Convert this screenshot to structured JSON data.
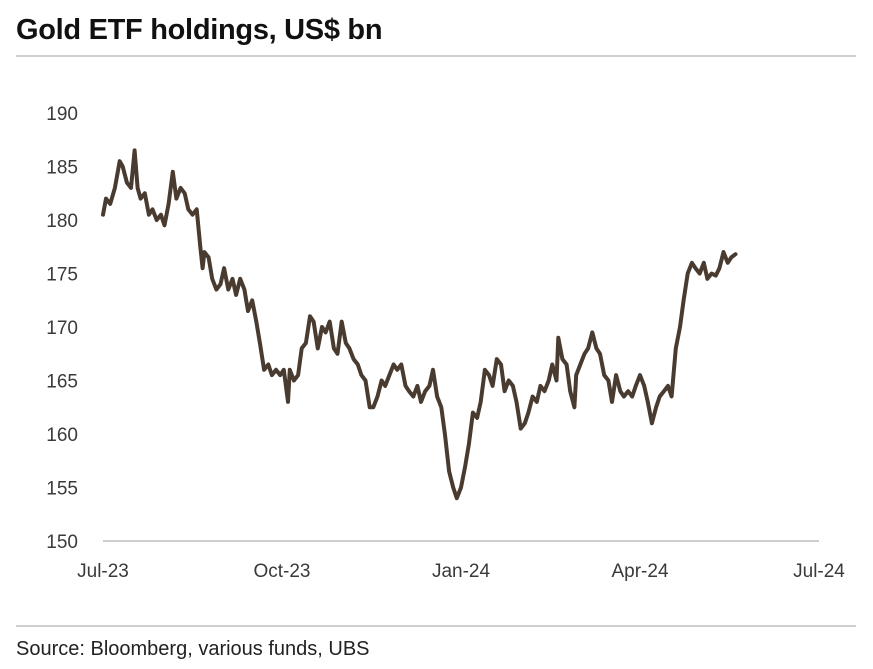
{
  "title": "Gold ETF holdings, US$ bn",
  "source": "Source: Bloomberg, various funds, UBS",
  "colors": {
    "line": "#4a3b30",
    "rule": "#cfcfcf",
    "axis": "#bdbdbd"
  },
  "chart_data": {
    "type": "line",
    "title": "Gold ETF holdings, US$ bn",
    "xlabel": "",
    "ylabel": "",
    "ylim": [
      150,
      190
    ],
    "yticks": [
      150,
      155,
      160,
      165,
      170,
      175,
      180,
      185,
      190
    ],
    "xlim": [
      0,
      12
    ],
    "xticks": [
      {
        "label": "Jul-23",
        "x": 0
      },
      {
        "label": "Oct-23",
        "x": 3
      },
      {
        "label": "Jan-24",
        "x": 6
      },
      {
        "label": "Apr-24",
        "x": 9
      },
      {
        "label": "Jul-24",
        "x": 12
      }
    ],
    "x_unit": "months since Jul-23",
    "series": [
      {
        "name": "Gold ETF holdings",
        "points": [
          [
            0.0,
            180.5
          ],
          [
            0.05,
            182.0
          ],
          [
            0.12,
            181.5
          ],
          [
            0.2,
            183.0
          ],
          [
            0.28,
            185.5
          ],
          [
            0.33,
            185.0
          ],
          [
            0.4,
            183.5
          ],
          [
            0.47,
            183.0
          ],
          [
            0.53,
            186.5
          ],
          [
            0.58,
            183.0
          ],
          [
            0.63,
            182.0
          ],
          [
            0.7,
            182.5
          ],
          [
            0.77,
            180.5
          ],
          [
            0.83,
            181.0
          ],
          [
            0.9,
            180.0
          ],
          [
            0.97,
            180.5
          ],
          [
            1.03,
            179.5
          ],
          [
            1.1,
            181.5
          ],
          [
            1.17,
            184.5
          ],
          [
            1.23,
            182.0
          ],
          [
            1.3,
            183.0
          ],
          [
            1.37,
            182.5
          ],
          [
            1.43,
            181.0
          ],
          [
            1.5,
            180.5
          ],
          [
            1.57,
            181.0
          ],
          [
            1.63,
            177.5
          ],
          [
            1.67,
            175.5
          ],
          [
            1.7,
            177.0
          ],
          [
            1.77,
            176.5
          ],
          [
            1.83,
            174.5
          ],
          [
            1.9,
            173.5
          ],
          [
            1.97,
            174.0
          ],
          [
            2.03,
            175.5
          ],
          [
            2.1,
            173.5
          ],
          [
            2.17,
            174.5
          ],
          [
            2.23,
            173.0
          ],
          [
            2.3,
            174.5
          ],
          [
            2.37,
            173.5
          ],
          [
            2.43,
            171.5
          ],
          [
            2.5,
            172.5
          ],
          [
            2.57,
            170.5
          ],
          [
            2.63,
            168.5
          ],
          [
            2.7,
            166.0
          ],
          [
            2.77,
            166.5
          ],
          [
            2.83,
            165.5
          ],
          [
            2.9,
            166.0
          ],
          [
            2.97,
            165.5
          ],
          [
            3.03,
            166.0
          ],
          [
            3.1,
            163.0
          ],
          [
            3.13,
            166.0
          ],
          [
            3.2,
            165.0
          ],
          [
            3.27,
            165.5
          ],
          [
            3.33,
            168.0
          ],
          [
            3.4,
            168.5
          ],
          [
            3.47,
            171.0
          ],
          [
            3.53,
            170.5
          ],
          [
            3.6,
            168.0
          ],
          [
            3.67,
            170.0
          ],
          [
            3.73,
            169.5
          ],
          [
            3.8,
            170.5
          ],
          [
            3.87,
            168.0
          ],
          [
            3.93,
            167.5
          ],
          [
            4.0,
            170.5
          ],
          [
            4.07,
            168.5
          ],
          [
            4.13,
            168.0
          ],
          [
            4.2,
            167.0
          ],
          [
            4.27,
            166.5
          ],
          [
            4.33,
            165.5
          ],
          [
            4.4,
            165.0
          ],
          [
            4.47,
            162.5
          ],
          [
            4.53,
            162.5
          ],
          [
            4.6,
            163.5
          ],
          [
            4.67,
            165.0
          ],
          [
            4.73,
            164.5
          ],
          [
            4.8,
            165.5
          ],
          [
            4.87,
            166.5
          ],
          [
            4.93,
            166.0
          ],
          [
            5.0,
            166.5
          ],
          [
            5.07,
            164.5
          ],
          [
            5.13,
            164.0
          ],
          [
            5.2,
            163.5
          ],
          [
            5.27,
            164.5
          ],
          [
            5.33,
            163.0
          ],
          [
            5.4,
            164.0
          ],
          [
            5.47,
            164.5
          ],
          [
            5.53,
            166.0
          ],
          [
            5.6,
            163.5
          ],
          [
            5.67,
            162.5
          ],
          [
            5.73,
            160.0
          ],
          [
            5.8,
            156.5
          ],
          [
            5.87,
            155.0
          ],
          [
            5.93,
            154.0
          ],
          [
            6.0,
            155.0
          ],
          [
            6.07,
            157.0
          ],
          [
            6.13,
            159.0
          ],
          [
            6.2,
            162.0
          ],
          [
            6.27,
            161.5
          ],
          [
            6.33,
            163.0
          ],
          [
            6.4,
            166.0
          ],
          [
            6.47,
            165.5
          ],
          [
            6.53,
            164.5
          ],
          [
            6.6,
            167.0
          ],
          [
            6.67,
            166.5
          ],
          [
            6.73,
            164.0
          ],
          [
            6.8,
            165.0
          ],
          [
            6.87,
            164.5
          ],
          [
            6.93,
            163.0
          ],
          [
            7.0,
            160.5
          ],
          [
            7.07,
            161.0
          ],
          [
            7.13,
            162.0
          ],
          [
            7.2,
            163.5
          ],
          [
            7.27,
            163.0
          ],
          [
            7.33,
            164.5
          ],
          [
            7.4,
            164.0
          ],
          [
            7.47,
            165.0
          ],
          [
            7.53,
            166.5
          ],
          [
            7.6,
            165.0
          ],
          [
            7.63,
            169.0
          ],
          [
            7.7,
            167.0
          ],
          [
            7.77,
            166.5
          ],
          [
            7.83,
            164.0
          ],
          [
            7.9,
            162.5
          ],
          [
            7.93,
            165.5
          ],
          [
            8.0,
            166.5
          ],
          [
            8.07,
            167.5
          ],
          [
            8.13,
            168.0
          ],
          [
            8.2,
            169.5
          ],
          [
            8.27,
            168.0
          ],
          [
            8.33,
            167.5
          ],
          [
            8.4,
            165.5
          ],
          [
            8.47,
            165.0
          ],
          [
            8.53,
            163.0
          ],
          [
            8.6,
            165.5
          ],
          [
            8.67,
            164.0
          ],
          [
            8.73,
            163.5
          ],
          [
            8.8,
            164.0
          ],
          [
            8.87,
            163.5
          ],
          [
            8.93,
            164.5
          ],
          [
            9.0,
            165.5
          ],
          [
            9.07,
            164.5
          ],
          [
            9.13,
            163.0
          ],
          [
            9.2,
            161.0
          ],
          [
            9.27,
            162.5
          ],
          [
            9.33,
            163.5
          ],
          [
            9.4,
            164.0
          ],
          [
            9.47,
            164.5
          ],
          [
            9.53,
            163.5
          ],
          [
            9.6,
            168.0
          ],
          [
            9.67,
            170.0
          ],
          [
            9.73,
            172.5
          ],
          [
            9.8,
            175.0
          ],
          [
            9.87,
            176.0
          ],
          [
            9.93,
            175.5
          ],
          [
            10.0,
            175.0
          ],
          [
            10.07,
            176.0
          ],
          [
            10.13,
            174.5
          ],
          [
            10.2,
            175.0
          ],
          [
            10.27,
            174.8
          ],
          [
            10.33,
            175.5
          ],
          [
            10.4,
            177.0
          ],
          [
            10.47,
            176.0
          ],
          [
            10.53,
            176.5
          ],
          [
            10.6,
            176.8
          ]
        ]
      }
    ]
  }
}
